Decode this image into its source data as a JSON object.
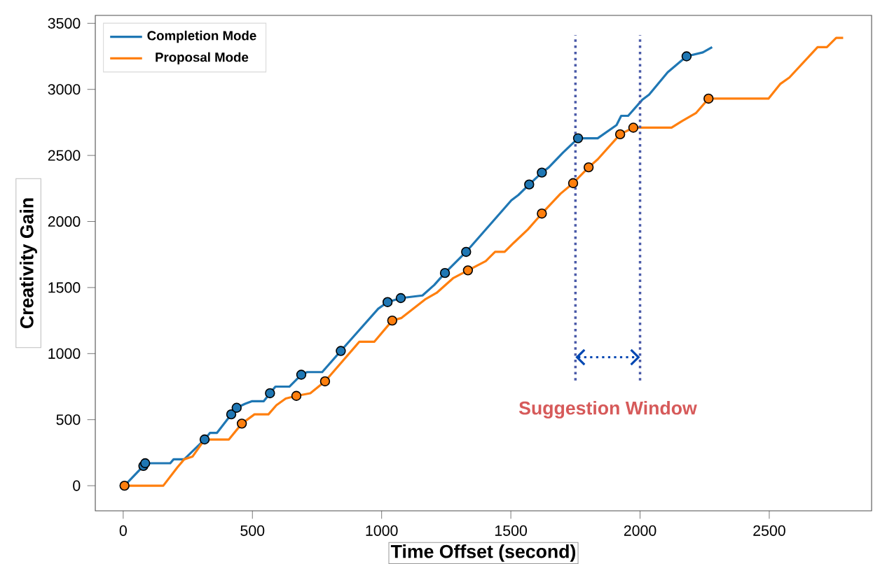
{
  "chart_data": {
    "type": "line",
    "xlabel": "Time Offset (second)",
    "ylabel": "Creativity Gain",
    "xlim": [
      -108,
      2896
    ],
    "ylim": [
      -190,
      3560
    ],
    "xticks": [
      0,
      500,
      1000,
      1500,
      2000,
      2500
    ],
    "yticks": [
      0,
      500,
      1000,
      1500,
      2000,
      2500,
      3000,
      3500
    ],
    "legend": "top left",
    "grid": false,
    "series": [
      {
        "name": "Completion Mode",
        "color": "#1f77b4",
        "x": [
          5,
          78,
          85,
          182,
          195,
          236,
          315,
          336,
          363,
          418,
          439,
          472,
          499,
          544,
          568,
          589,
          643,
          689,
          712,
          770,
          842,
          987,
          1023,
          1074,
          1158,
          1204,
          1245,
          1327,
          1502,
          1529,
          1571,
          1620,
          1647,
          1701,
          1760,
          1836,
          1909,
          1927,
          1954,
          2008,
          2035,
          2107,
          2180,
          2243,
          2279
        ],
        "values": [
          0,
          150,
          170,
          170,
          200,
          200,
          350,
          400,
          400,
          540,
          590,
          620,
          640,
          640,
          700,
          750,
          750,
          840,
          860,
          860,
          1020,
          1340,
          1390,
          1420,
          1440,
          1520,
          1610,
          1770,
          2160,
          2200,
          2280,
          2370,
          2410,
          2520,
          2630,
          2630,
          2730,
          2800,
          2800,
          2920,
          2960,
          3130,
          3250,
          3280,
          3320
        ]
      },
      {
        "name": "Proposal Mode",
        "color": "#ff7f0e",
        "x": [
          5,
          155,
          210,
          236,
          268,
          315,
          409,
          459,
          508,
          562,
          593,
          629,
          670,
          724,
          781,
          914,
          972,
          1041,
          1077,
          1168,
          1213,
          1276,
          1334,
          1403,
          1439,
          1476,
          1512,
          1566,
          1620,
          1692,
          1741,
          1801,
          1836,
          1923,
          1974,
          2122,
          2162,
          2216,
          2265,
          2497,
          2542,
          2578,
          2687,
          2723,
          2759,
          2786
        ],
        "values": [
          0,
          0,
          140,
          200,
          220,
          350,
          350,
          470,
          540,
          540,
          610,
          660,
          680,
          700,
          790,
          1090,
          1090,
          1250,
          1270,
          1410,
          1460,
          1570,
          1630,
          1700,
          1770,
          1770,
          1840,
          1940,
          2060,
          2210,
          2290,
          2410,
          2470,
          2660,
          2710,
          2710,
          2760,
          2820,
          2930,
          2930,
          3040,
          3090,
          3320,
          3320,
          3390,
          3390
        ]
      },
      {
        "type": "scatter",
        "color": "#1f77b4",
        "marker": "circle",
        "x": [
          78,
          85,
          315,
          418,
          439,
          568,
          689,
          842,
          1023,
          1074,
          1245,
          1327,
          1571,
          1620,
          1760,
          2180
        ],
        "values": [
          150,
          170,
          350,
          540,
          590,
          700,
          840,
          1020,
          1390,
          1420,
          1610,
          1770,
          2280,
          2370,
          2630,
          3250
        ]
      },
      {
        "type": "scatter",
        "color": "#ff7f0e",
        "marker": "circle",
        "x": [
          5,
          459,
          670,
          781,
          1041,
          1334,
          1620,
          1741,
          1801,
          1923,
          1974,
          2265
        ],
        "values": [
          0,
          470,
          680,
          790,
          1250,
          1630,
          2060,
          2290,
          2410,
          2660,
          2710,
          2930
        ]
      }
    ],
    "ref_lines": [
      {
        "axis": "x",
        "value": 1750,
        "color": "#4a5aa8",
        "line_style": "dotted"
      },
      {
        "axis": "x",
        "value": 2000,
        "color": "#4a5aa8",
        "line_style": "dotted"
      }
    ],
    "annotations": [
      "Suggestion Window"
    ]
  }
}
